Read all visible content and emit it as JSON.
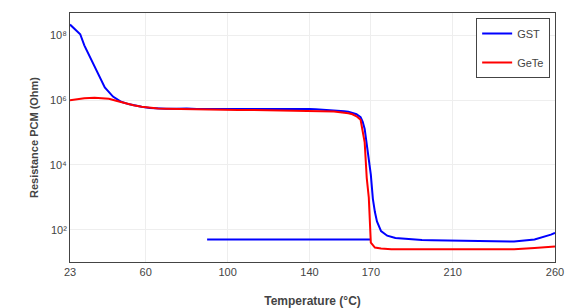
{
  "chart_data": {
    "type": "line",
    "title": "",
    "xlabel": "Temperature (°C)",
    "ylabel": "Resistance PCM (Ohm)",
    "log": "y",
    "grid": true,
    "legend": "upper right",
    "xlim": [
      23,
      260
    ],
    "ylim": [
      10,
      500000000.0
    ],
    "xticks": [
      23,
      60,
      100,
      140,
      170,
      210,
      260
    ],
    "yticks": [
      {
        "value": 100,
        "label": "10²"
      },
      {
        "value": 10000,
        "label": "10⁴"
      },
      {
        "value": 1000000,
        "label": "10⁶"
      },
      {
        "value": 100000000,
        "label": "10⁸"
      }
    ],
    "series": [
      {
        "name": "GST",
        "color": "#0000FF",
        "x": [
          23,
          25,
          28,
          30,
          33,
          36,
          40,
          44,
          48,
          52,
          55,
          58,
          62,
          66,
          70,
          75,
          80,
          85,
          90,
          92,
          95,
          98,
          100,
          105,
          108,
          112,
          115,
          118,
          120,
          124,
          128,
          132,
          135,
          138,
          140,
          143,
          146,
          149,
          152,
          155,
          157,
          159,
          161,
          163,
          165,
          166,
          167,
          168,
          169,
          170,
          171,
          172,
          173,
          175,
          178,
          182,
          186,
          190,
          195,
          200,
          210,
          220,
          230,
          240,
          250,
          255,
          258,
          260
        ],
        "values": [
          220000000.0,
          170000000.0,
          110000000.0,
          50000000.0,
          20000000.0,
          8000000.0,
          2500000.0,
          1300000.0,
          900000.0,
          750000.0,
          680000.0,
          630000.0,
          580000.0,
          560000.0,
          550000.0,
          550000.0,
          560000.0,
          540000.0,
          540000.0,
          550000.0,
          550000.0,
          560000.0,
          550000.0,
          540000.0,
          550000.0,
          560000.0,
          550000.0,
          540000.0,
          550000.0,
          550000.0,
          540000.0,
          550000.0,
          550000.0,
          540000.0,
          540000.0,
          530000.0,
          520000.0,
          510000.0,
          500000.0,
          480000.0,
          460000.0,
          440000.0,
          410000.0,
          370000.0,
          300000.0,
          220000.0,
          130000.0,
          50000.0,
          15000.0,
          5000.0,
          900.0,
          350.0,
          180.0,
          90.0,
          65.0,
          55.0,
          52.0,
          50.0,
          48.0,
          47.0,
          46.0,
          45.0,
          44.0,
          43.0,
          50.0,
          60.0,
          70.0,
          80.0
        ]
      },
      {
        "name": "GST",
        "color": "#0000FF",
        "x": [
          90,
          95,
          100,
          105,
          110,
          115,
          120,
          125,
          130,
          135,
          140,
          143,
          146,
          149,
          152,
          155,
          157,
          159,
          161,
          163,
          165,
          167,
          169,
          170
        ],
        "values": [
          50.0,
          50.0,
          50.0,
          50.0,
          50.0,
          50.0,
          50.0,
          50.0,
          50.0,
          50.0,
          50.0,
          50.0,
          50.0,
          50.0,
          50.0,
          50.0,
          50.0,
          50.0,
          50.0,
          50.0,
          50.0,
          50.0,
          50.0,
          50.0
        ]
      },
      {
        "name": "GeTe",
        "color": "#FF0000",
        "x": [
          23,
          30,
          35,
          38,
          42,
          46,
          50,
          54,
          58,
          62,
          66,
          70,
          75,
          80,
          85,
          90,
          92,
          95,
          98,
          100,
          105,
          110,
          115,
          120,
          125,
          130,
          135,
          140,
          143,
          146,
          149,
          152,
          155,
          157,
          159,
          161,
          163,
          165,
          167,
          168,
          169,
          170,
          171,
          172,
          175,
          180,
          190,
          200,
          210,
          220,
          230,
          240,
          250,
          260
        ],
        "values": [
          1000000.0,
          1150000.0,
          1200000.0,
          1180000.0,
          1120000.0,
          950000.0,
          800000.0,
          700000.0,
          630000.0,
          590000.0,
          560000.0,
          550000.0,
          540000.0,
          530000.0,
          520000.0,
          515000.0,
          510000.0,
          505000.0,
          510000.0,
          505000.0,
          500000.0,
          505000.0,
          500000.0,
          500000.0,
          495000.0,
          490000.0,
          485000.0,
          480000.0,
          475000.0,
          470000.0,
          460000.0,
          450000.0,
          430000.0,
          420000.0,
          400000.0,
          370000.0,
          320000.0,
          250000.0,
          50000.0,
          4000.0,
          1000.0,
          40.0,
          32.0,
          28.0,
          26.0,
          25.0,
          25.0,
          25.0,
          25.0,
          25.0,
          25.0,
          25.0,
          27.0,
          30.0
        ]
      }
    ]
  }
}
